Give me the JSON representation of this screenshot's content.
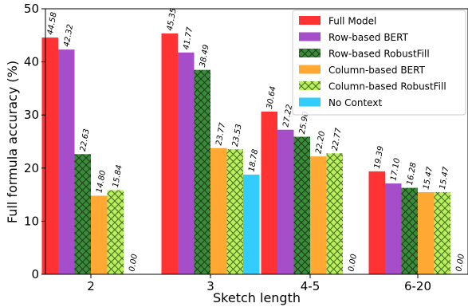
{
  "chart_data": {
    "type": "bar",
    "xlabel": "Sketch length",
    "ylabel": "Full formula accuracy (%)",
    "ylim": [
      0,
      50
    ],
    "yticks": [
      0,
      10,
      20,
      30,
      40,
      50
    ],
    "categories": [
      "2",
      "3",
      "4-5",
      "6-20"
    ],
    "legend_position": "top-right",
    "grid": false,
    "series": [
      {
        "name": "Full Model",
        "color": "#ff3333",
        "pattern": "none",
        "values": [
          44.58,
          45.35,
          30.64,
          19.39
        ],
        "labels": [
          "44.58",
          "45.35",
          "30.64",
          "19.39"
        ]
      },
      {
        "name": "Row-based BERT",
        "color": "#a64dc9",
        "pattern": "none",
        "values": [
          42.32,
          41.77,
          27.22,
          17.1
        ],
        "labels": [
          "42.32",
          "41.77",
          "27.22",
          "17.10"
        ]
      },
      {
        "name": "Row-based RobustFill",
        "color": "#3a8c3a",
        "pattern": "crosshatch",
        "values": [
          22.63,
          38.49,
          25.9,
          16.28
        ],
        "labels": [
          "22.63",
          "38.49",
          "25.90",
          "16.28"
        ]
      },
      {
        "name": "Column-based BERT",
        "color": "#ffa833",
        "pattern": "none",
        "values": [
          14.8,
          23.77,
          22.2,
          15.47
        ],
        "labels": [
          "14.80",
          "23.77",
          "22.20",
          "15.47"
        ]
      },
      {
        "name": "Column-based RobustFill",
        "color": "#b8f060",
        "pattern": "crosshatch",
        "values": [
          15.84,
          23.53,
          22.77,
          15.47
        ],
        "labels": [
          "15.84",
          "23.53",
          "22.77",
          "15.47"
        ]
      },
      {
        "name": "No Context",
        "color": "#33ccff",
        "pattern": "none",
        "values": [
          0.0,
          18.78,
          0.0,
          0.0
        ],
        "labels": [
          "0.00",
          "18.78",
          "0.00",
          "0.00"
        ]
      }
    ]
  }
}
